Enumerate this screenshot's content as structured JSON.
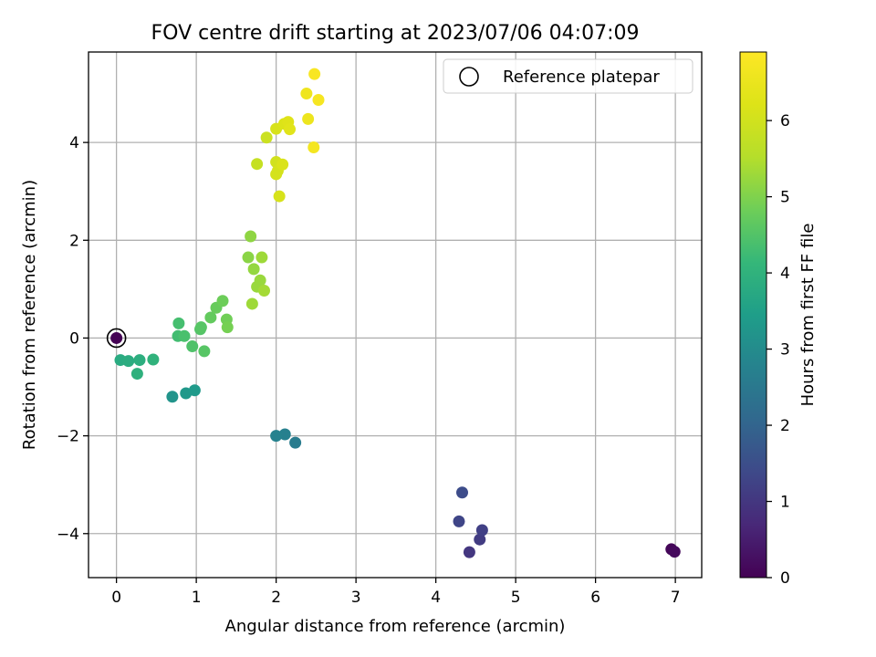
{
  "chart_data": {
    "type": "scatter",
    "title": "FOV centre drift starting at 2023/07/06 04:07:09",
    "xlabel": "Angular distance from reference (arcmin)",
    "ylabel": "Rotation from reference (arcmin)",
    "xlim": [
      -0.35,
      7.33
    ],
    "ylim": [
      -4.9,
      5.85
    ],
    "xticks": [
      0,
      1,
      2,
      3,
      4,
      5,
      6,
      7
    ],
    "yticks": [
      -4,
      -2,
      0,
      2,
      4
    ],
    "grid": true,
    "legend": {
      "position": "top-right",
      "entries": [
        "Reference platepar"
      ]
    },
    "colorbar": {
      "label": "Hours from first FF file",
      "range": [
        0,
        6.9
      ],
      "ticks": [
        0,
        1,
        2,
        3,
        4,
        5,
        6
      ],
      "colormap": "viridis"
    },
    "reference_point": {
      "x": 0,
      "y": 0
    },
    "points": [
      {
        "x": 0.0,
        "y": 0.0,
        "h": 0.0
      },
      {
        "x": 6.95,
        "y": -4.32,
        "h": 0.08
      },
      {
        "x": 6.99,
        "y": -4.37,
        "h": 0.15
      },
      {
        "x": 4.42,
        "y": -4.38,
        "h": 1.0
      },
      {
        "x": 4.55,
        "y": -4.12,
        "h": 1.1
      },
      {
        "x": 4.58,
        "y": -3.93,
        "h": 1.2
      },
      {
        "x": 4.29,
        "y": -3.75,
        "h": 1.3
      },
      {
        "x": 4.33,
        "y": -3.16,
        "h": 1.45
      },
      {
        "x": 2.24,
        "y": -2.14,
        "h": 2.6
      },
      {
        "x": 2.11,
        "y": -1.97,
        "h": 2.7
      },
      {
        "x": 2.0,
        "y": -2.0,
        "h": 2.75
      },
      {
        "x": 0.7,
        "y": -1.2,
        "h": 3.2
      },
      {
        "x": 0.87,
        "y": -1.13,
        "h": 3.3
      },
      {
        "x": 0.98,
        "y": -1.07,
        "h": 3.35
      },
      {
        "x": 0.05,
        "y": -0.45,
        "h": 3.8
      },
      {
        "x": 0.15,
        "y": -0.47,
        "h": 3.85
      },
      {
        "x": 0.29,
        "y": -0.45,
        "h": 3.9
      },
      {
        "x": 0.26,
        "y": -0.73,
        "h": 3.95
      },
      {
        "x": 0.46,
        "y": -0.44,
        "h": 4.0
      },
      {
        "x": 0.77,
        "y": 0.04,
        "h": 4.3
      },
      {
        "x": 0.78,
        "y": 0.3,
        "h": 4.35
      },
      {
        "x": 0.85,
        "y": 0.04,
        "h": 4.4
      },
      {
        "x": 0.95,
        "y": -0.17,
        "h": 4.45
      },
      {
        "x": 1.05,
        "y": 0.18,
        "h": 4.5
      },
      {
        "x": 1.06,
        "y": 0.22,
        "h": 4.55
      },
      {
        "x": 1.1,
        "y": -0.27,
        "h": 4.55
      },
      {
        "x": 1.18,
        "y": 0.42,
        "h": 4.7
      },
      {
        "x": 1.25,
        "y": 0.62,
        "h": 4.75
      },
      {
        "x": 1.33,
        "y": 0.76,
        "h": 4.8
      },
      {
        "x": 1.38,
        "y": 0.38,
        "h": 4.85
      },
      {
        "x": 1.39,
        "y": 0.22,
        "h": 4.9
      },
      {
        "x": 1.65,
        "y": 1.65,
        "h": 5.1
      },
      {
        "x": 1.68,
        "y": 2.08,
        "h": 5.15
      },
      {
        "x": 1.72,
        "y": 1.41,
        "h": 5.2
      },
      {
        "x": 1.76,
        "y": 1.05,
        "h": 5.25
      },
      {
        "x": 1.8,
        "y": 1.18,
        "h": 5.25
      },
      {
        "x": 1.82,
        "y": 1.65,
        "h": 5.3
      },
      {
        "x": 1.7,
        "y": 0.7,
        "h": 5.3
      },
      {
        "x": 1.85,
        "y": 0.97,
        "h": 5.35
      },
      {
        "x": 1.76,
        "y": 3.56,
        "h": 5.8
      },
      {
        "x": 1.88,
        "y": 4.1,
        "h": 5.9
      },
      {
        "x": 2.0,
        "y": 3.6,
        "h": 6.0
      },
      {
        "x": 2.0,
        "y": 3.35,
        "h": 6.05
      },
      {
        "x": 2.02,
        "y": 3.42,
        "h": 6.05
      },
      {
        "x": 2.0,
        "y": 4.28,
        "h": 6.1
      },
      {
        "x": 2.04,
        "y": 2.9,
        "h": 6.1
      },
      {
        "x": 2.08,
        "y": 3.55,
        "h": 6.15
      },
      {
        "x": 2.1,
        "y": 4.38,
        "h": 6.2
      },
      {
        "x": 2.15,
        "y": 4.42,
        "h": 6.25
      },
      {
        "x": 2.17,
        "y": 4.27,
        "h": 6.3
      },
      {
        "x": 2.38,
        "y": 5.0,
        "h": 6.6
      },
      {
        "x": 2.4,
        "y": 4.48,
        "h": 6.55
      },
      {
        "x": 2.47,
        "y": 3.9,
        "h": 6.7
      },
      {
        "x": 2.48,
        "y": 5.4,
        "h": 6.8
      },
      {
        "x": 2.53,
        "y": 4.87,
        "h": 6.75
      }
    ]
  }
}
